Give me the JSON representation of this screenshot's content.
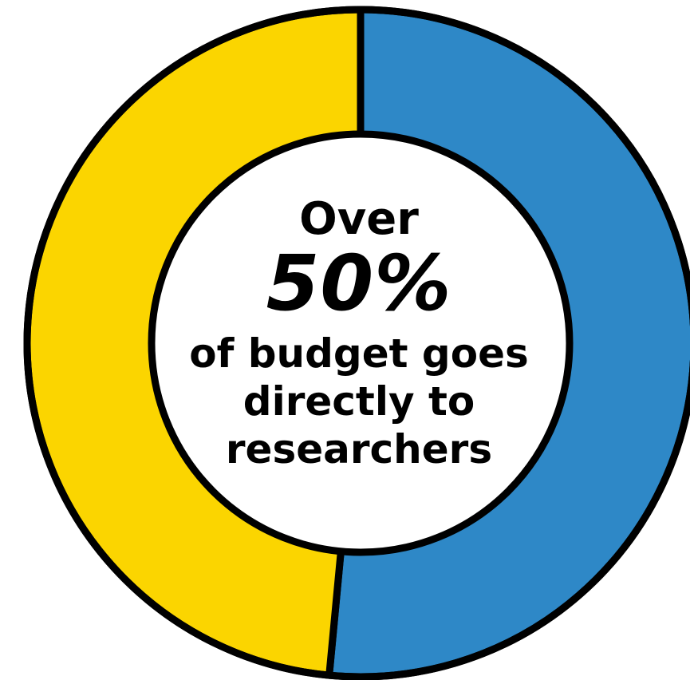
{
  "chart_data": {
    "type": "pie",
    "donut": true,
    "slices": [
      {
        "value": 51.5,
        "color": "#2E88C7"
      },
      {
        "value": 48.5,
        "color": "#FBD500"
      }
    ],
    "start_angle_deg": 0,
    "outline_color": "#000000",
    "center_hole_color": "#ffffff",
    "center_text": {
      "line1": "Over",
      "line2": "50%",
      "line3": "of budget goes",
      "line4": "directly to",
      "line5": "researchers"
    }
  }
}
